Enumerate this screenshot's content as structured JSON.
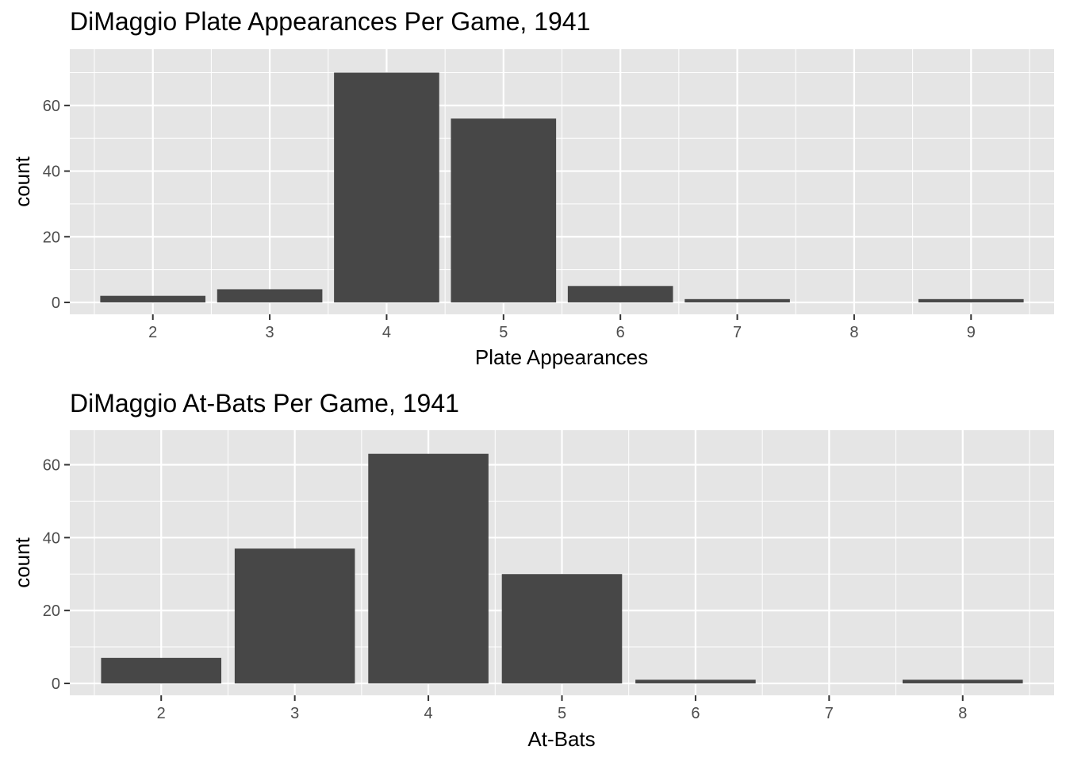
{
  "chart_data": [
    {
      "type": "bar",
      "title": "DiMaggio Plate Appearances Per Game, 1941",
      "xlabel": "Plate Appearances",
      "ylabel": "count",
      "categories": [
        "2",
        "3",
        "4",
        "5",
        "6",
        "7",
        "8",
        "9"
      ],
      "values": [
        2,
        4,
        70,
        56,
        5,
        1,
        0,
        1
      ],
      "yticks": [
        0,
        20,
        40,
        60
      ],
      "ylim": [
        0,
        73.5
      ],
      "grid": true,
      "bar_color": "#474747",
      "panel_color": "#e5e5e5",
      "grid_color": "#ffffff"
    },
    {
      "type": "bar",
      "title": "DiMaggio At-Bats Per Game, 1941",
      "xlabel": "At-Bats",
      "ylabel": "count",
      "categories": [
        "2",
        "3",
        "4",
        "5",
        "6",
        "7",
        "8"
      ],
      "values": [
        7,
        37,
        63,
        30,
        1,
        0,
        1
      ],
      "yticks": [
        0,
        20,
        40,
        60
      ],
      "ylim": [
        0,
        66.2
      ],
      "grid": true,
      "bar_color": "#474747",
      "panel_color": "#e5e5e5",
      "grid_color": "#ffffff"
    }
  ]
}
